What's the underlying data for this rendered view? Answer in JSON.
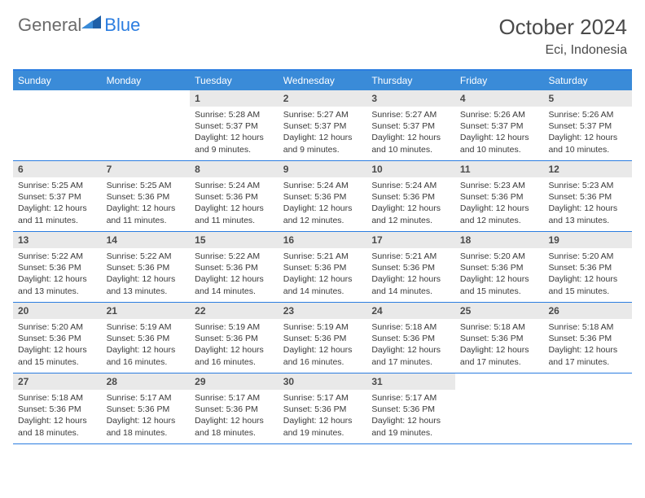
{
  "brand": {
    "part1": "General",
    "part2": "Blue"
  },
  "title": "October 2024",
  "location": "Eci, Indonesia",
  "colors": {
    "accent": "#3a8bd8",
    "rule": "#2b7de0",
    "daybar": "#e9e9e9",
    "text": "#4a4a4a"
  },
  "daysOfWeek": [
    "Sunday",
    "Monday",
    "Tuesday",
    "Wednesday",
    "Thursday",
    "Friday",
    "Saturday"
  ],
  "weeks": [
    [
      {
        "n": "",
        "sr": "",
        "ss": "",
        "dl": ""
      },
      {
        "n": "",
        "sr": "",
        "ss": "",
        "dl": ""
      },
      {
        "n": "1",
        "sr": "5:28 AM",
        "ss": "5:37 PM",
        "dl": "12 hours and 9 minutes."
      },
      {
        "n": "2",
        "sr": "5:27 AM",
        "ss": "5:37 PM",
        "dl": "12 hours and 9 minutes."
      },
      {
        "n": "3",
        "sr": "5:27 AM",
        "ss": "5:37 PM",
        "dl": "12 hours and 10 minutes."
      },
      {
        "n": "4",
        "sr": "5:26 AM",
        "ss": "5:37 PM",
        "dl": "12 hours and 10 minutes."
      },
      {
        "n": "5",
        "sr": "5:26 AM",
        "ss": "5:37 PM",
        "dl": "12 hours and 10 minutes."
      }
    ],
    [
      {
        "n": "6",
        "sr": "5:25 AM",
        "ss": "5:37 PM",
        "dl": "12 hours and 11 minutes."
      },
      {
        "n": "7",
        "sr": "5:25 AM",
        "ss": "5:36 PM",
        "dl": "12 hours and 11 minutes."
      },
      {
        "n": "8",
        "sr": "5:24 AM",
        "ss": "5:36 PM",
        "dl": "12 hours and 11 minutes."
      },
      {
        "n": "9",
        "sr": "5:24 AM",
        "ss": "5:36 PM",
        "dl": "12 hours and 12 minutes."
      },
      {
        "n": "10",
        "sr": "5:24 AM",
        "ss": "5:36 PM",
        "dl": "12 hours and 12 minutes."
      },
      {
        "n": "11",
        "sr": "5:23 AM",
        "ss": "5:36 PM",
        "dl": "12 hours and 12 minutes."
      },
      {
        "n": "12",
        "sr": "5:23 AM",
        "ss": "5:36 PM",
        "dl": "12 hours and 13 minutes."
      }
    ],
    [
      {
        "n": "13",
        "sr": "5:22 AM",
        "ss": "5:36 PM",
        "dl": "12 hours and 13 minutes."
      },
      {
        "n": "14",
        "sr": "5:22 AM",
        "ss": "5:36 PM",
        "dl": "12 hours and 13 minutes."
      },
      {
        "n": "15",
        "sr": "5:22 AM",
        "ss": "5:36 PM",
        "dl": "12 hours and 14 minutes."
      },
      {
        "n": "16",
        "sr": "5:21 AM",
        "ss": "5:36 PM",
        "dl": "12 hours and 14 minutes."
      },
      {
        "n": "17",
        "sr": "5:21 AM",
        "ss": "5:36 PM",
        "dl": "12 hours and 14 minutes."
      },
      {
        "n": "18",
        "sr": "5:20 AM",
        "ss": "5:36 PM",
        "dl": "12 hours and 15 minutes."
      },
      {
        "n": "19",
        "sr": "5:20 AM",
        "ss": "5:36 PM",
        "dl": "12 hours and 15 minutes."
      }
    ],
    [
      {
        "n": "20",
        "sr": "5:20 AM",
        "ss": "5:36 PM",
        "dl": "12 hours and 15 minutes."
      },
      {
        "n": "21",
        "sr": "5:19 AM",
        "ss": "5:36 PM",
        "dl": "12 hours and 16 minutes."
      },
      {
        "n": "22",
        "sr": "5:19 AM",
        "ss": "5:36 PM",
        "dl": "12 hours and 16 minutes."
      },
      {
        "n": "23",
        "sr": "5:19 AM",
        "ss": "5:36 PM",
        "dl": "12 hours and 16 minutes."
      },
      {
        "n": "24",
        "sr": "5:18 AM",
        "ss": "5:36 PM",
        "dl": "12 hours and 17 minutes."
      },
      {
        "n": "25",
        "sr": "5:18 AM",
        "ss": "5:36 PM",
        "dl": "12 hours and 17 minutes."
      },
      {
        "n": "26",
        "sr": "5:18 AM",
        "ss": "5:36 PM",
        "dl": "12 hours and 17 minutes."
      }
    ],
    [
      {
        "n": "27",
        "sr": "5:18 AM",
        "ss": "5:36 PM",
        "dl": "12 hours and 18 minutes."
      },
      {
        "n": "28",
        "sr": "5:17 AM",
        "ss": "5:36 PM",
        "dl": "12 hours and 18 minutes."
      },
      {
        "n": "29",
        "sr": "5:17 AM",
        "ss": "5:36 PM",
        "dl": "12 hours and 18 minutes."
      },
      {
        "n": "30",
        "sr": "5:17 AM",
        "ss": "5:36 PM",
        "dl": "12 hours and 19 minutes."
      },
      {
        "n": "31",
        "sr": "5:17 AM",
        "ss": "5:36 PM",
        "dl": "12 hours and 19 minutes."
      },
      {
        "n": "",
        "sr": "",
        "ss": "",
        "dl": ""
      },
      {
        "n": "",
        "sr": "",
        "ss": "",
        "dl": ""
      }
    ]
  ],
  "labels": {
    "sunrise": "Sunrise:",
    "sunset": "Sunset:",
    "daylight": "Daylight:"
  }
}
